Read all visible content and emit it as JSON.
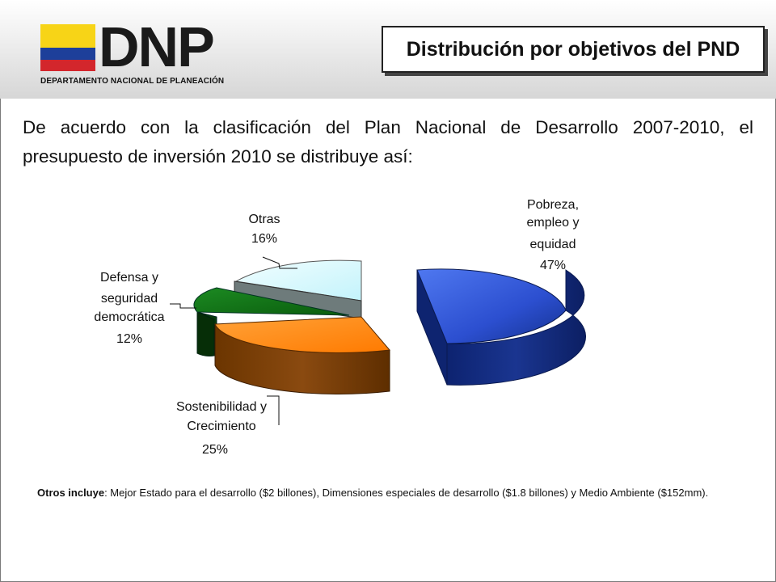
{
  "header": {
    "logo": {
      "name": "DNP",
      "subtitle": "DEPARTAMENTO NACIONAL DE PLANEACIÓN"
    },
    "title": "Distribución por objetivos del PND"
  },
  "intro": "De acuerdo con la clasificación del Plan Nacional de Desarrollo 2007-2010, el presupuesto de inversión 2010 se distribuye así:",
  "colors": {
    "pobreza": "#2f55d6",
    "sostenibilidad": "#ff8c1a",
    "defensa": "#0f6d12",
    "gris": "#7f8c8c",
    "otras": "#d9fbff"
  },
  "chart_data": {
    "type": "pie",
    "title": "",
    "series": [
      {
        "label_lines": [
          "Pobreza,",
          "empleo y",
          "equidad"
        ],
        "value": 47,
        "percent_label": "47%"
      },
      {
        "label_lines": [
          "Sostenibilidad y",
          "Crecimiento"
        ],
        "value": 25,
        "percent_label": "25%"
      },
      {
        "label_lines": [
          "Defensa y",
          "seguridad",
          "democrática"
        ],
        "value": 12,
        "percent_label": "12%"
      },
      {
        "label_lines": [
          "Otras"
        ],
        "value": 16,
        "percent_label": "16%"
      }
    ],
    "legend": "none"
  },
  "note": {
    "bold": "Otros incluye",
    "text": ": Mejor Estado para el desarrollo ($2 billones), Dimensiones especiales de desarrollo ($1.8 billones) y Medio Ambiente ($152mm)."
  }
}
